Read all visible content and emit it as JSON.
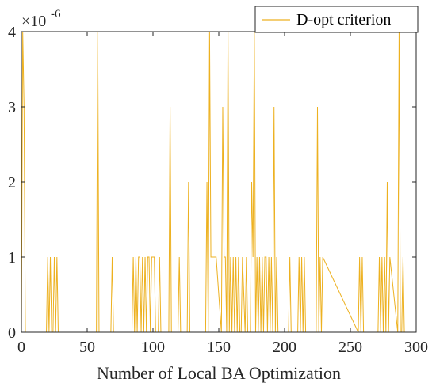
{
  "chart_data": {
    "type": "line",
    "xlabel": "Number of Local BA Optimization",
    "ylabel": "",
    "xlim": [
      0,
      300
    ],
    "ylim": [
      0,
      4
    ],
    "xticks": [
      0,
      50,
      100,
      150,
      200,
      250,
      300
    ],
    "yticks": [
      0,
      1,
      2,
      3,
      4
    ],
    "y_exponent_label": "×10",
    "y_exponent_power": "-6",
    "grid": false,
    "legend_position": "top-right",
    "series": [
      {
        "name": "D-opt criterion",
        "color": "#EDB120",
        "x": [
          0,
          1,
          2,
          3,
          19,
          20,
          21,
          22,
          23,
          24,
          25,
          26,
          27,
          28,
          57,
          58,
          59,
          68,
          69,
          70,
          84,
          85,
          86,
          87,
          88,
          89,
          90,
          91,
          92,
          93,
          94,
          95,
          96,
          97,
          98,
          99,
          100,
          101,
          102,
          104,
          105,
          106,
          112,
          113,
          114,
          119,
          120,
          121,
          126,
          127,
          128,
          140,
          141,
          142,
          143,
          144,
          145,
          148,
          152,
          153,
          154,
          155,
          156,
          157,
          158,
          159,
          160,
          161,
          162,
          163,
          164,
          165,
          166,
          167,
          168,
          170,
          171,
          172,
          174,
          175,
          176,
          177,
          178,
          179,
          180,
          181,
          182,
          183,
          184,
          185,
          186,
          187,
          188,
          189,
          190,
          191,
          192,
          193,
          194,
          195,
          203,
          204,
          205,
          210,
          211,
          212,
          213,
          214,
          215,
          216,
          224,
          225,
          226,
          227,
          228,
          229,
          256,
          257,
          258,
          259,
          260,
          261,
          271,
          272,
          273,
          274,
          275,
          276,
          277,
          278,
          279,
          280,
          286,
          287,
          288,
          289,
          290,
          291
        ],
        "values": [
          0,
          4,
          3,
          0,
          0,
          1,
          0,
          1,
          0,
          0,
          1,
          0,
          1,
          0,
          0,
          4,
          0,
          0,
          1,
          0,
          0,
          1,
          0,
          1,
          0,
          1,
          1,
          0,
          1,
          0,
          1,
          0,
          1,
          1,
          0,
          1,
          1,
          1,
          0,
          0,
          1,
          0,
          0,
          3,
          0,
          0,
          1,
          0,
          0,
          2,
          0,
          0,
          2,
          0,
          4,
          1,
          1,
          1,
          0,
          3,
          1,
          1,
          0,
          4,
          0,
          1,
          0,
          1,
          0,
          1,
          0,
          1,
          0,
          0,
          1,
          0,
          1,
          0,
          0,
          2,
          1,
          4,
          0,
          1,
          0,
          1,
          0,
          1,
          0,
          1,
          1,
          0,
          1,
          0,
          1,
          0,
          3,
          0,
          1,
          0,
          0,
          1,
          0,
          0,
          1,
          0,
          1,
          0,
          1,
          0,
          0,
          3,
          0,
          1,
          0,
          1,
          0,
          1,
          0,
          1,
          0,
          0,
          0,
          1,
          0,
          1,
          0,
          1,
          0,
          2,
          0,
          1,
          0,
          4,
          0,
          0,
          1,
          0
        ]
      }
    ]
  }
}
